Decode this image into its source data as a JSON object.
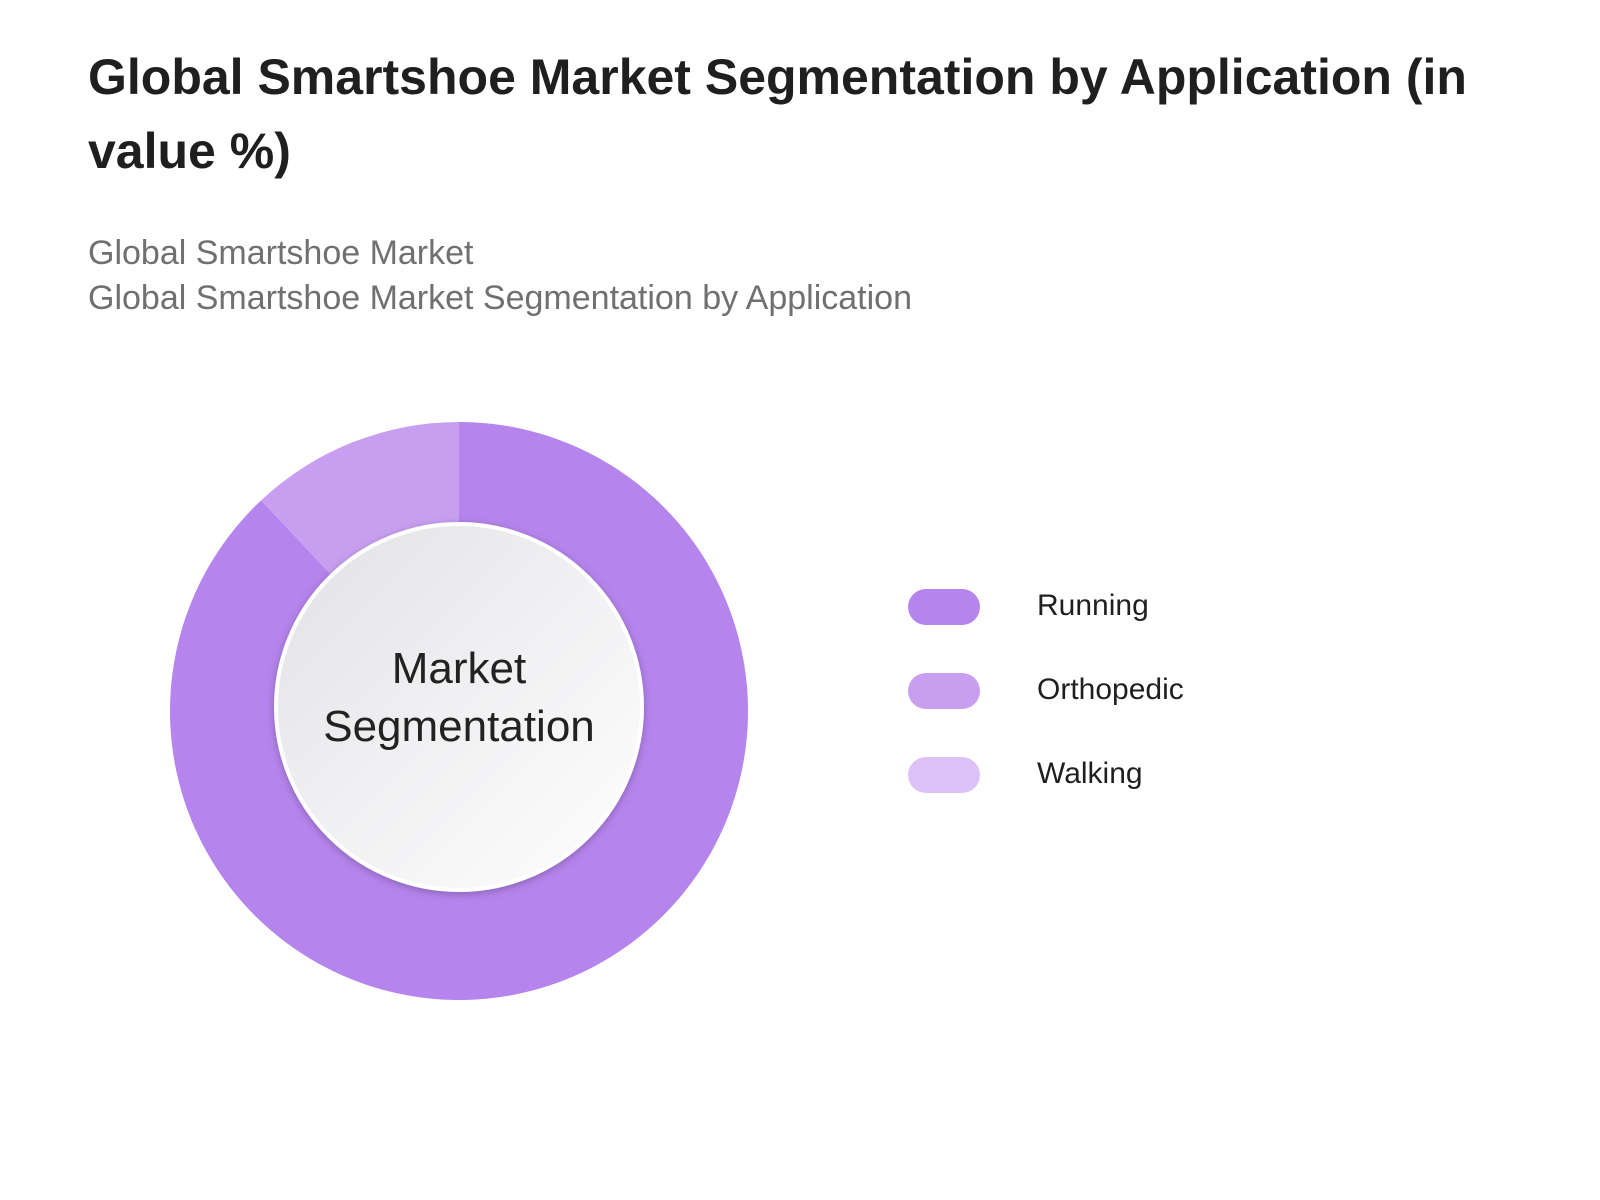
{
  "chart_data": {
    "type": "pie",
    "title": "Global Smartshoe Market Segmentation by Application (in value %)",
    "subtitle": [
      "Global Smartshoe Market",
      "Global Smartshoe Market Segmentation by Application"
    ],
    "center_label": "Market Segmentation",
    "categories": [
      "Running",
      "Orthopedic",
      "Walking"
    ],
    "values": [
      88,
      12,
      0
    ],
    "colors": [
      "#b584ec",
      "#c89ff0",
      "#dcc2f6"
    ]
  }
}
